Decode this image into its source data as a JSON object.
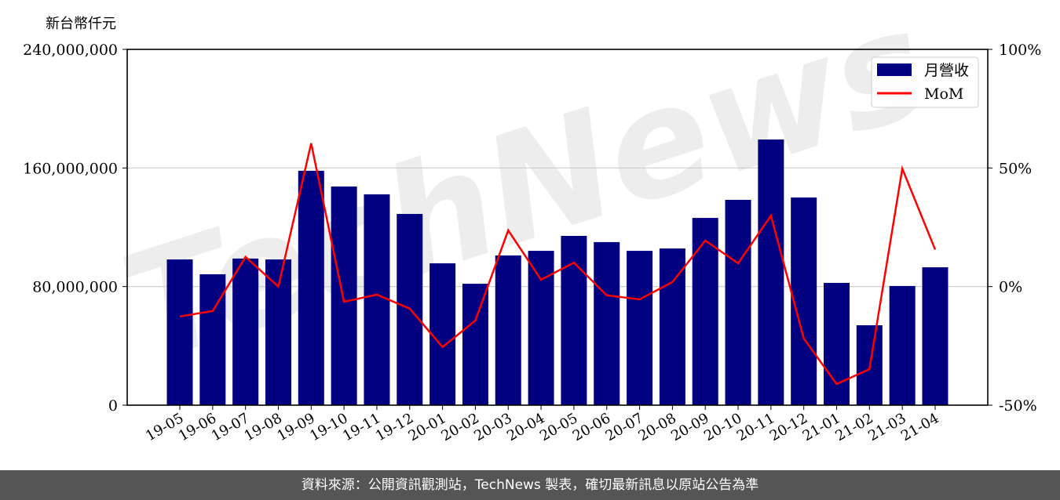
{
  "chart_data": {
    "type": "bar+line",
    "ylabel": "新台幣仟元",
    "categories": [
      "19-05",
      "19-06",
      "19-07",
      "19-08",
      "19-09",
      "19-10",
      "19-11",
      "19-12",
      "20-01",
      "20-02",
      "20-03",
      "20-04",
      "20-05",
      "20-06",
      "20-07",
      "20-08",
      "20-09",
      "20-10",
      "20-11",
      "20-12",
      "21-01",
      "21-02",
      "21-03",
      "21-04"
    ],
    "series": [
      {
        "name": "月營收",
        "axis": "left",
        "type": "bar",
        "color": "#000080",
        "values": [
          98300000,
          88300000,
          98900000,
          98300000,
          158100000,
          147500000,
          142200000,
          129000000,
          95700000,
          81900000,
          101000000,
          104100000,
          114200000,
          110000000,
          104100000,
          105700000,
          126300000,
          138500000,
          179200000,
          140100000,
          82500000,
          53900000,
          80400000,
          93000000
        ]
      },
      {
        "name": "MoM",
        "axis": "right",
        "type": "line",
        "color": "#ff0000",
        "values": [
          -12.6,
          -10.3,
          12.5,
          0,
          60.4,
          -6.4,
          -3.4,
          -9.3,
          -25.5,
          -14.3,
          23.7,
          2.9,
          10.1,
          -3.7,
          -5.4,
          1.9,
          19.4,
          9.8,
          29.9,
          -21.9,
          -41.1,
          -34.8,
          49.7,
          15.6
        ]
      }
    ],
    "ylim_left": [
      0,
      240000000
    ],
    "yticks_left": [
      "0",
      "80,000,000",
      "160,000,000",
      "240,000,000"
    ],
    "ylim_right": [
      -50,
      100
    ],
    "yticks_right": [
      "-50%",
      "0%",
      "50%",
      "100%"
    ],
    "grid": "horizontal",
    "legend": "top-right"
  },
  "watermark": "TechNews",
  "footer": "資料來源：公開資訊觀測站，TechNews 製表，確切最新訊息以原站公告為準"
}
